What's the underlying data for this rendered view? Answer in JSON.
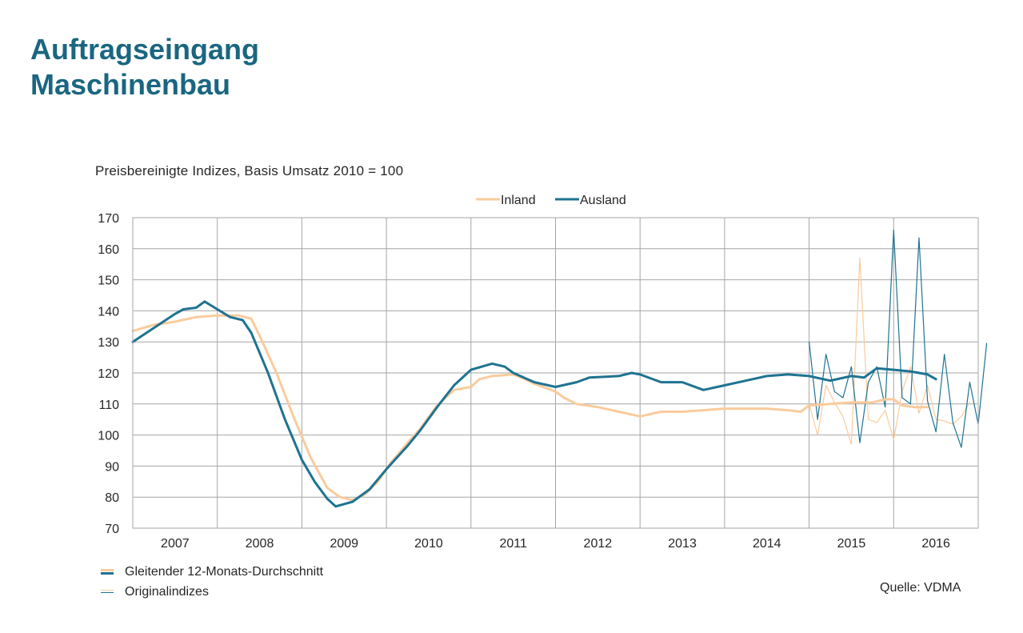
{
  "header": {
    "title_line1": "Auftragseingang",
    "title_line2": "Maschinenbau",
    "subtitle": "Preisbereinigte Indizes, Basis Umsatz 2010 = 100"
  },
  "footer": {
    "legend_avg": "Gleitender 12-Monats-Durchschnitt",
    "legend_orig": "Originalindizes",
    "source": "Quelle: VDMA"
  },
  "colors": {
    "inland": "#f9cb9c",
    "ausland": "#1f7391",
    "title": "#1a6680",
    "grid": "#a6a6a6"
  },
  "chart_data": {
    "type": "line",
    "ylim": [
      70,
      170
    ],
    "yticks": [
      70,
      80,
      90,
      100,
      110,
      120,
      130,
      140,
      150,
      160,
      170
    ],
    "xlim": [
      2006.5,
      2016.5
    ],
    "xticks": [
      "2007",
      "2008",
      "2009",
      "2010",
      "2011",
      "2012",
      "2013",
      "2014",
      "2015",
      "2016"
    ],
    "grid": true,
    "legend_position": "top-center",
    "series": [
      {
        "name": "Inland",
        "kind": "moving_average",
        "points": [
          [
            2006.5,
            133.5
          ],
          [
            2006.75,
            135.5
          ],
          [
            2007.0,
            136.5
          ],
          [
            2007.25,
            138.0
          ],
          [
            2007.5,
            138.5
          ],
          [
            2007.75,
            138.5
          ],
          [
            2007.9,
            137.5
          ],
          [
            2008.0,
            132.0
          ],
          [
            2008.2,
            120.0
          ],
          [
            2008.4,
            106.0
          ],
          [
            2008.6,
            93.0
          ],
          [
            2008.8,
            83.0
          ],
          [
            2008.95,
            80.0
          ],
          [
            2009.1,
            79.0
          ],
          [
            2009.25,
            81.0
          ],
          [
            2009.4,
            85.0
          ],
          [
            2009.55,
            91.0
          ],
          [
            2009.75,
            97.5
          ],
          [
            2009.9,
            102.0
          ],
          [
            2010.1,
            109.5
          ],
          [
            2010.3,
            114.5
          ],
          [
            2010.5,
            115.5
          ],
          [
            2010.6,
            118.0
          ],
          [
            2010.75,
            119.0
          ],
          [
            2011.0,
            119.5
          ],
          [
            2011.1,
            118.5
          ],
          [
            2011.25,
            116.5
          ],
          [
            2011.5,
            114.0
          ],
          [
            2011.6,
            112.0
          ],
          [
            2011.75,
            110.0
          ],
          [
            2012.0,
            109.0
          ],
          [
            2012.25,
            107.5
          ],
          [
            2012.5,
            106.0
          ],
          [
            2012.75,
            107.5
          ],
          [
            2013.0,
            107.5
          ],
          [
            2013.25,
            108.0
          ],
          [
            2013.5,
            108.5
          ],
          [
            2013.75,
            108.5
          ],
          [
            2014.0,
            108.5
          ],
          [
            2014.25,
            108.0
          ],
          [
            2014.4,
            107.5
          ],
          [
            2014.5,
            109.5
          ],
          [
            2014.75,
            110.0
          ],
          [
            2015.0,
            110.5
          ],
          [
            2015.25,
            110.5
          ],
          [
            2015.4,
            111.5
          ],
          [
            2015.5,
            111.5
          ],
          [
            2015.6,
            109.5
          ],
          [
            2015.75,
            109.0
          ],
          [
            2015.9,
            109.0
          ]
        ]
      },
      {
        "name": "Ausland",
        "kind": "moving_average",
        "points": [
          [
            2006.5,
            130.0
          ],
          [
            2006.75,
            134.5
          ],
          [
            2007.0,
            139.0
          ],
          [
            2007.1,
            140.5
          ],
          [
            2007.25,
            141.0
          ],
          [
            2007.35,
            143.0
          ],
          [
            2007.5,
            140.5
          ],
          [
            2007.65,
            138.0
          ],
          [
            2007.8,
            137.0
          ],
          [
            2007.9,
            133.0
          ],
          [
            2008.1,
            120.0
          ],
          [
            2008.3,
            105.0
          ],
          [
            2008.5,
            92.0
          ],
          [
            2008.65,
            85.0
          ],
          [
            2008.8,
            79.5
          ],
          [
            2008.9,
            77.0
          ],
          [
            2009.1,
            78.5
          ],
          [
            2009.3,
            82.5
          ],
          [
            2009.5,
            89.0
          ],
          [
            2009.75,
            96.5
          ],
          [
            2009.9,
            101.5
          ],
          [
            2010.1,
            109.0
          ],
          [
            2010.3,
            116.0
          ],
          [
            2010.5,
            121.0
          ],
          [
            2010.75,
            123.0
          ],
          [
            2010.9,
            122.0
          ],
          [
            2011.0,
            120.0
          ],
          [
            2011.25,
            117.0
          ],
          [
            2011.5,
            115.5
          ],
          [
            2011.75,
            117.0
          ],
          [
            2011.9,
            118.5
          ],
          [
            2012.25,
            119.0
          ],
          [
            2012.4,
            120.0
          ],
          [
            2012.5,
            119.5
          ],
          [
            2012.75,
            117.0
          ],
          [
            2013.0,
            117.0
          ],
          [
            2013.25,
            114.5
          ],
          [
            2013.5,
            116.0
          ],
          [
            2013.75,
            117.5
          ],
          [
            2014.0,
            119.0
          ],
          [
            2014.25,
            119.5
          ],
          [
            2014.5,
            119.0
          ],
          [
            2014.75,
            117.5
          ],
          [
            2015.0,
            119.0
          ],
          [
            2015.15,
            118.5
          ],
          [
            2015.3,
            121.5
          ],
          [
            2015.5,
            121.0
          ],
          [
            2015.7,
            120.5
          ],
          [
            2015.9,
            119.5
          ],
          [
            2016.0,
            118.0
          ]
        ]
      },
      {
        "name": "Inland",
        "kind": "original",
        "points": [
          [
            2014.5,
            110.0
          ],
          [
            2014.6,
            100.0
          ],
          [
            2014.7,
            116.0
          ],
          [
            2014.8,
            110.5
          ],
          [
            2014.9,
            106.0
          ],
          [
            2015.0,
            97.0
          ],
          [
            2015.1,
            157.0
          ],
          [
            2015.2,
            105.0
          ],
          [
            2015.3,
            104.0
          ],
          [
            2015.4,
            108.0
          ],
          [
            2015.5,
            98.5
          ],
          [
            2015.6,
            114.0
          ],
          [
            2015.7,
            122.0
          ],
          [
            2015.8,
            107.0
          ],
          [
            2015.9,
            116.0
          ],
          [
            2016.0,
            105.0
          ],
          [
            2016.1,
            104.5
          ],
          [
            2016.2,
            103.5
          ],
          [
            2016.3,
            106.0
          ],
          [
            2016.4,
            110.5
          ]
        ]
      },
      {
        "name": "Ausland",
        "kind": "original",
        "points": [
          [
            2014.5,
            130.0
          ],
          [
            2014.6,
            105.0
          ],
          [
            2014.7,
            126.0
          ],
          [
            2014.8,
            114.0
          ],
          [
            2014.9,
            112.0
          ],
          [
            2015.0,
            122.0
          ],
          [
            2015.1,
            97.5
          ],
          [
            2015.2,
            117.0
          ],
          [
            2015.3,
            122.0
          ],
          [
            2015.4,
            109.0
          ],
          [
            2015.5,
            166.0
          ],
          [
            2015.6,
            112.0
          ],
          [
            2015.7,
            110.0
          ],
          [
            2015.8,
            163.5
          ],
          [
            2015.9,
            111.0
          ],
          [
            2016.0,
            101.0
          ],
          [
            2016.1,
            126.0
          ],
          [
            2016.2,
            104.0
          ],
          [
            2016.3,
            96.0
          ],
          [
            2016.4,
            117.0
          ],
          [
            2016.5,
            103.5
          ],
          [
            2016.6,
            129.5
          ]
        ]
      }
    ]
  }
}
